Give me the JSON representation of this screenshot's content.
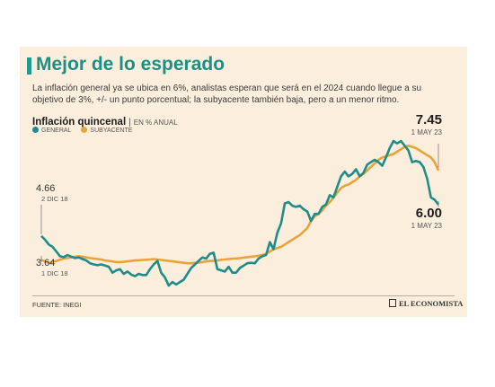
{
  "header": {
    "title": "Mejor de lo esperado",
    "subtitle": "La inflación general ya se ubica en 6%, analistas esperan que será en el 2024 cuando llegue a su objetivo de 3%, +/- un punto porcentual; la subyacente también baja, pero a un menor ritmo."
  },
  "footer": {
    "source": "FUENTE: INEGI",
    "brand": "EL ECONOMISTA"
  },
  "colors": {
    "general": "#1e8c8a",
    "subyacente": "#eaa33b",
    "accent": "#1e9a8e",
    "background": "#fbeedc"
  },
  "chart_data": {
    "type": "line",
    "title": "Inflación quincenal",
    "unit": "EN % ANUAL",
    "legend_position": "top-left",
    "grid": false,
    "ylim": [
      2.4,
      9.2
    ],
    "x": {
      "start": "1 DIC 18",
      "end": "1 MAY 23",
      "points": 107
    },
    "series": [
      {
        "name": "GENERAL",
        "color": "#1e8c8a",
        "values": [
          4.66,
          4.5,
          4.3,
          4.2,
          4.0,
          3.8,
          3.76,
          3.85,
          3.78,
          3.72,
          3.75,
          3.68,
          3.62,
          3.5,
          3.45,
          3.42,
          3.45,
          3.4,
          3.35,
          3.1,
          3.2,
          3.25,
          3.05,
          3.15,
          3.02,
          2.95,
          3.05,
          3.0,
          3.0,
          3.25,
          3.45,
          3.6,
          3.1,
          2.9,
          2.55,
          2.7,
          2.6,
          2.7,
          2.8,
          3.05,
          3.3,
          3.45,
          3.6,
          3.75,
          3.7,
          3.9,
          3.95,
          3.25,
          3.2,
          3.15,
          3.35,
          3.1,
          3.1,
          3.3,
          3.4,
          3.5,
          3.52,
          3.5,
          3.7,
          3.8,
          3.85,
          4.4,
          4.1,
          4.8,
          5.2,
          6.05,
          6.1,
          5.95,
          5.9,
          5.95,
          5.8,
          5.7,
          5.3,
          5.6,
          5.6,
          5.9,
          6.0,
          6.4,
          6.3,
          6.75,
          7.2,
          7.4,
          7.2,
          7.3,
          7.5,
          7.2,
          7.35,
          7.7,
          7.8,
          7.9,
          7.8,
          7.65,
          8.0,
          8.4,
          8.7,
          8.6,
          8.7,
          8.5,
          8.3,
          7.8,
          7.85,
          7.8,
          7.6,
          7.1,
          6.3,
          6.2,
          6.0
        ],
        "labels": [
          {
            "value": "4.66",
            "date": "2 DIC 18",
            "index": 0
          },
          {
            "value": "6.00",
            "date": "1 MAY 23",
            "index": 106
          }
        ]
      },
      {
        "name": "SUBYACENTE",
        "color": "#eaa33b",
        "values": [
          3.64,
          3.58,
          3.52,
          3.55,
          3.6,
          3.65,
          3.7,
          3.72,
          3.75,
          3.78,
          3.8,
          3.78,
          3.75,
          3.72,
          3.7,
          3.68,
          3.66,
          3.62,
          3.6,
          3.58,
          3.55,
          3.55,
          3.56,
          3.58,
          3.6,
          3.62,
          3.63,
          3.64,
          3.65,
          3.66,
          3.68,
          3.66,
          3.64,
          3.62,
          3.6,
          3.58,
          3.56,
          3.54,
          3.52,
          3.5,
          3.5,
          3.52,
          3.53,
          3.55,
          3.58,
          3.6,
          3.6,
          3.62,
          3.65,
          3.66,
          3.68,
          3.7,
          3.7,
          3.72,
          3.74,
          3.76,
          3.78,
          3.8,
          3.82,
          3.85,
          3.9,
          4.0,
          4.1,
          4.15,
          4.2,
          4.3,
          4.4,
          4.5,
          4.6,
          4.7,
          4.85,
          5.0,
          5.3,
          5.5,
          5.6,
          5.75,
          5.95,
          6.1,
          6.3,
          6.5,
          6.7,
          6.8,
          6.85,
          6.95,
          7.05,
          7.2,
          7.3,
          7.45,
          7.6,
          7.75,
          7.9,
          8.0,
          8.05,
          8.1,
          8.15,
          8.25,
          8.35,
          8.45,
          8.5,
          8.45,
          8.4,
          8.3,
          8.2,
          8.1,
          8.0,
          7.8,
          7.45
        ],
        "labels": [
          {
            "value": "3.64",
            "date": "1 DIC 18",
            "index": 0
          },
          {
            "value": "7.45",
            "date": "1 MAY 23",
            "index": 106
          }
        ]
      }
    ]
  }
}
